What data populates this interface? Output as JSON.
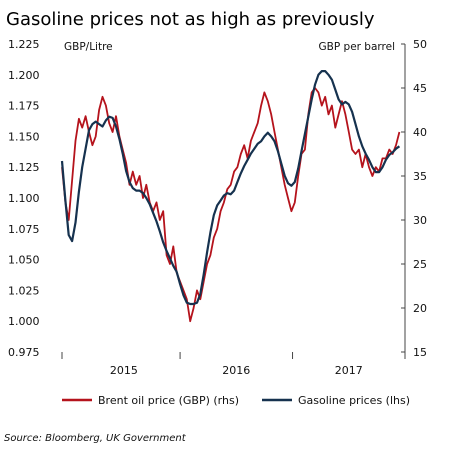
{
  "chart_data": {
    "type": "line",
    "title": "Gasoline prices not as high as previously",
    "source": "Source: Bloomberg, UK Government",
    "left_axis_unit": "GBP/Litre",
    "right_axis_unit": "GBP per barrel",
    "left_ylim": [
      0.975,
      1.225
    ],
    "right_ylim": [
      15,
      50
    ],
    "left_ticks": [
      "0.975",
      "1.000",
      "1.025",
      "1.050",
      "1.075",
      "1.100",
      "1.125",
      "1.150",
      "1.175",
      "1.200",
      "1.225"
    ],
    "right_ticks": [
      "15",
      "20",
      "25",
      "30",
      "35",
      "40",
      "45",
      "50"
    ],
    "x_tick_labels": [
      "2015",
      "2016",
      "2017"
    ],
    "xlim": [
      2014.5,
      2017.55
    ],
    "legend_position": "bottom",
    "colors": {
      "brent": "#b5131c",
      "gasoline": "#16324f"
    },
    "series": [
      {
        "name": "Brent oil price (GBP) (rhs)",
        "axis": "right",
        "x": [
          2014.5,
          2014.53,
          2014.56,
          2014.59,
          2014.62,
          2014.65,
          2014.68,
          2014.71,
          2014.74,
          2014.77,
          2014.8,
          2014.83,
          2014.86,
          2014.89,
          2014.92,
          2014.95,
          2014.98,
          2015.01,
          2015.04,
          2015.07,
          2015.1,
          2015.13,
          2015.16,
          2015.19,
          2015.22,
          2015.25,
          2015.28,
          2015.31,
          2015.34,
          2015.37,
          2015.4,
          2015.43,
          2015.46,
          2015.49,
          2015.52,
          2015.55,
          2015.58,
          2015.61,
          2015.64,
          2015.67,
          2015.7,
          2015.73,
          2015.76,
          2015.79,
          2015.82,
          2015.85,
          2015.88,
          2015.91,
          2015.94,
          2015.97,
          2016.0,
          2016.03,
          2016.06,
          2016.09,
          2016.12,
          2016.15,
          2016.18,
          2016.21,
          2016.24,
          2016.27,
          2016.3,
          2016.33,
          2016.36,
          2016.39,
          2016.42,
          2016.45,
          2016.48,
          2016.51,
          2016.54,
          2016.57,
          2016.6,
          2016.63,
          2016.66,
          2016.69,
          2016.72,
          2016.75,
          2016.78,
          2016.81,
          2016.84,
          2016.87,
          2016.9,
          2016.93,
          2016.96,
          2016.99,
          2017.02,
          2017.05,
          2017.08,
          2017.11,
          2017.14,
          2017.17,
          2017.2,
          2017.23,
          2017.26,
          2017.29,
          2017.32,
          2017.35,
          2017.38,
          2017.41,
          2017.44,
          2017.47,
          2017.5
        ],
        "y": [
          36.0,
          32.0,
          30.0,
          34.5,
          39.0,
          41.5,
          40.5,
          41.8,
          40.0,
          38.5,
          39.5,
          42.5,
          44.0,
          43.0,
          41.0,
          40.0,
          41.8,
          39.5,
          38.0,
          36.5,
          34.0,
          35.5,
          34.0,
          35.0,
          32.5,
          34.0,
          32.0,
          31.0,
          32.0,
          30.0,
          31.0,
          26.0,
          25.0,
          27.0,
          24.0,
          23.0,
          22.0,
          21.0,
          18.5,
          20.0,
          22.0,
          21.0,
          23.0,
          25.0,
          26.0,
          28.0,
          29.0,
          31.0,
          32.0,
          33.5,
          34.0,
          35.5,
          36.0,
          37.5,
          38.5,
          37.0,
          39.0,
          40.0,
          41.0,
          43.0,
          44.5,
          43.5,
          42.0,
          40.0,
          38.0,
          36.0,
          34.0,
          32.5,
          31.0,
          32.0,
          35.0,
          37.5,
          38.0,
          42.0,
          44.5,
          45.0,
          44.5,
          43.0,
          44.0,
          42.0,
          43.0,
          40.5,
          42.0,
          43.5,
          42.0,
          40.0,
          38.0,
          37.5,
          38.0,
          36.0,
          37.5,
          36.0,
          35.0,
          36.0,
          35.5,
          37.0,
          37.0,
          38.0,
          37.5,
          38.5,
          40.0
        ]
      },
      {
        "name": "Gasoline prices (lhs)",
        "axis": "left",
        "x": [
          2014.5,
          2014.53,
          2014.56,
          2014.59,
          2014.62,
          2014.65,
          2014.68,
          2014.71,
          2014.74,
          2014.77,
          2014.8,
          2014.83,
          2014.86,
          2014.89,
          2014.92,
          2014.95,
          2014.98,
          2015.01,
          2015.04,
          2015.07,
          2015.1,
          2015.13,
          2015.16,
          2015.19,
          2015.22,
          2015.25,
          2015.28,
          2015.31,
          2015.34,
          2015.37,
          2015.4,
          2015.43,
          2015.46,
          2015.49,
          2015.52,
          2015.55,
          2015.58,
          2015.61,
          2015.64,
          2015.67,
          2015.7,
          2015.73,
          2015.76,
          2015.79,
          2015.82,
          2015.85,
          2015.88,
          2015.91,
          2015.94,
          2015.97,
          2016.0,
          2016.03,
          2016.06,
          2016.09,
          2016.12,
          2016.15,
          2016.18,
          2016.21,
          2016.24,
          2016.27,
          2016.3,
          2016.33,
          2016.36,
          2016.39,
          2016.42,
          2016.45,
          2016.48,
          2016.51,
          2016.54,
          2016.57,
          2016.6,
          2016.63,
          2016.66,
          2016.69,
          2016.72,
          2016.75,
          2016.78,
          2016.81,
          2016.84,
          2016.87,
          2016.9,
          2016.93,
          2016.96,
          2016.99,
          2017.02,
          2017.05,
          2017.08,
          2017.11,
          2017.14,
          2017.17,
          2017.2,
          2017.23,
          2017.26,
          2017.29,
          2017.32,
          2017.35,
          2017.38,
          2017.41,
          2017.44,
          2017.47,
          2017.5
        ],
        "y": [
          1.13,
          1.098,
          1.07,
          1.065,
          1.08,
          1.105,
          1.125,
          1.14,
          1.155,
          1.16,
          1.162,
          1.16,
          1.158,
          1.163,
          1.166,
          1.165,
          1.158,
          1.148,
          1.136,
          1.122,
          1.113,
          1.108,
          1.106,
          1.106,
          1.104,
          1.1,
          1.095,
          1.088,
          1.081,
          1.073,
          1.064,
          1.057,
          1.051,
          1.045,
          1.04,
          1.03,
          1.021,
          1.015,
          1.014,
          1.014,
          1.015,
          1.022,
          1.038,
          1.056,
          1.072,
          1.086,
          1.094,
          1.098,
          1.102,
          1.104,
          1.103,
          1.106,
          1.113,
          1.12,
          1.126,
          1.131,
          1.136,
          1.14,
          1.144,
          1.146,
          1.15,
          1.153,
          1.15,
          1.146,
          1.138,
          1.128,
          1.118,
          1.112,
          1.11,
          1.113,
          1.124,
          1.138,
          1.152,
          1.166,
          1.18,
          1.192,
          1.2,
          1.203,
          1.203,
          1.2,
          1.196,
          1.188,
          1.18,
          1.176,
          1.178,
          1.176,
          1.17,
          1.16,
          1.15,
          1.142,
          1.136,
          1.131,
          1.125,
          1.121,
          1.121,
          1.125,
          1.131,
          1.135,
          1.137,
          1.14,
          1.142
        ]
      }
    ]
  }
}
